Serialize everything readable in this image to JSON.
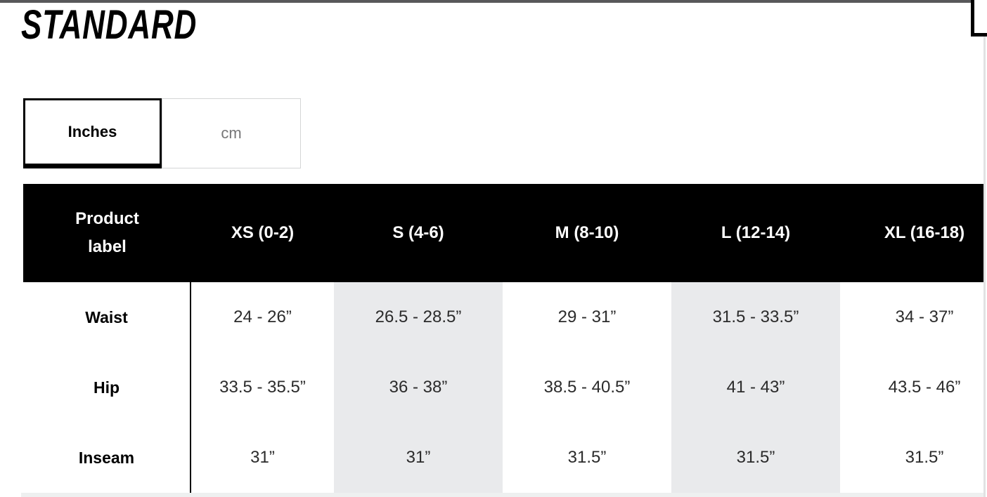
{
  "page": {
    "title": "STANDARD"
  },
  "unit_tabs": {
    "inches_label": "Inches",
    "cm_label": "cm",
    "active": "Inches"
  },
  "size_chart": {
    "columns": [
      "Product\nlabel",
      "XS (0-2)",
      "S (4-6)",
      "M (8-10)",
      "L (12-14)",
      "XL (16-18)"
    ],
    "rows": [
      {
        "label": "Waist",
        "values": [
          "24 - 26”",
          "26.5 - 28.5”",
          "29 - 31”",
          "31.5 - 33.5”",
          "34 - 37”"
        ]
      },
      {
        "label": "Hip",
        "values": [
          "33.5 - 35.5”",
          "36 - 38”",
          "38.5 - 40.5”",
          "41 - 43”",
          "43.5 - 46”"
        ]
      },
      {
        "label": "Inseam",
        "values": [
          "31”",
          "31”",
          "31.5”",
          "31.5”",
          "31.5”"
        ]
      }
    ]
  },
  "colors": {
    "header_bg": "#000000",
    "header_text": "#ffffff",
    "band_gray": "#e9eaec",
    "inactive_tab_text": "#767677",
    "top_bar": "#58585a"
  }
}
